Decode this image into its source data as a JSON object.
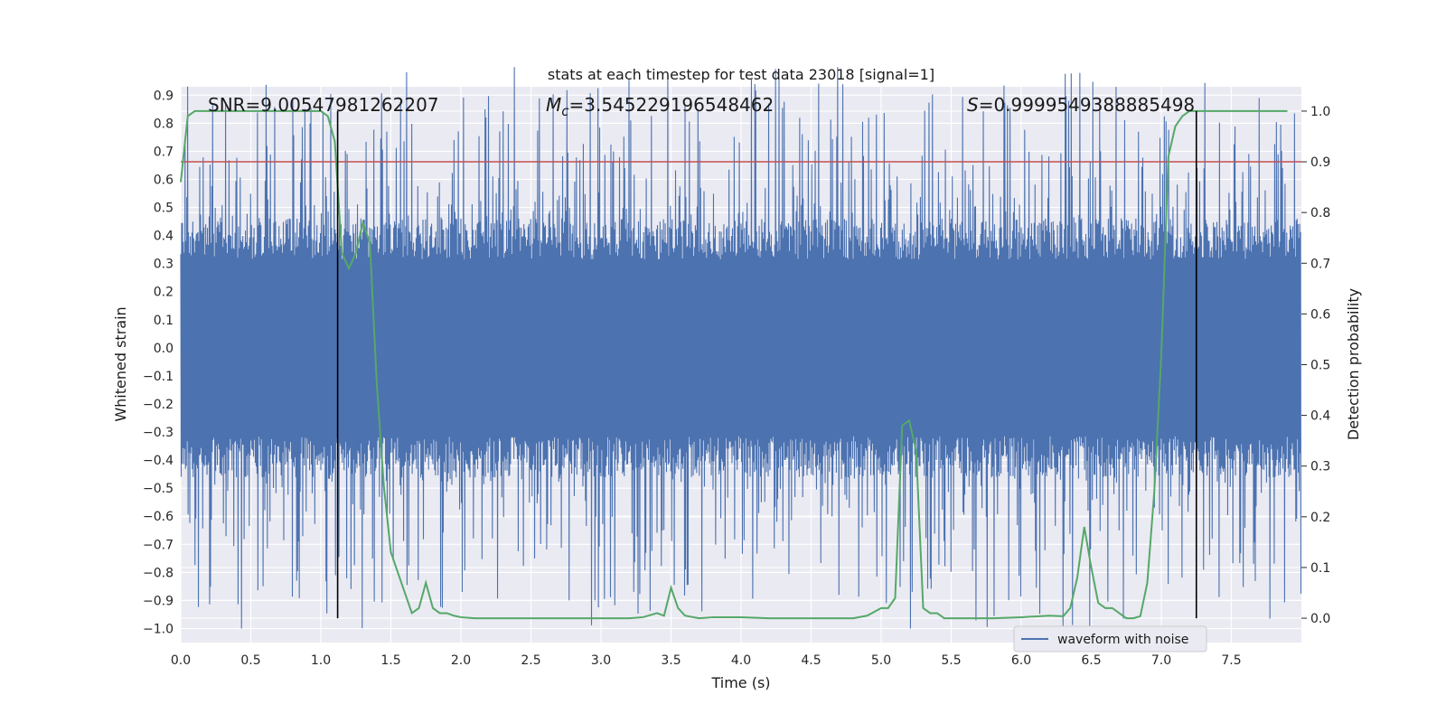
{
  "chart_data": {
    "type": "line",
    "title": "stats at each timestep for test data 23018 [signal=1]",
    "xlabel": "Time (s)",
    "ylabel_left": "Whitened strain",
    "ylabel_right": "Detection probability",
    "xlim": [
      0.0,
      8.0
    ],
    "ylim_left": [
      -1.05,
      0.93
    ],
    "ylim_right": [
      -0.048,
      1.048
    ],
    "x_ticks": [
      "0.0",
      "0.5",
      "1.0",
      "1.5",
      "2.0",
      "2.5",
      "3.0",
      "3.5",
      "4.0",
      "4.5",
      "5.0",
      "5.5",
      "6.0",
      "6.5",
      "7.0",
      "7.5"
    ],
    "x_tick_values": [
      0,
      0.5,
      1,
      1.5,
      2,
      2.5,
      3,
      3.5,
      4,
      4.5,
      5,
      5.5,
      6,
      6.5,
      7,
      7.5
    ],
    "y_left_ticks": [
      "0.9",
      "0.8",
      "0.7",
      "0.6",
      "0.5",
      "0.4",
      "0.3",
      "0.2",
      "0.1",
      "0.0",
      "−0.1",
      "−0.2",
      "−0.3",
      "−0.4",
      "−0.5",
      "−0.6",
      "−0.7",
      "−0.8",
      "−0.9",
      "−1.0"
    ],
    "y_left_tick_values": [
      0.9,
      0.8,
      0.7,
      0.6,
      0.5,
      0.4,
      0.3,
      0.2,
      0.1,
      0,
      -0.1,
      -0.2,
      -0.3,
      -0.4,
      -0.5,
      -0.6,
      -0.7,
      -0.8,
      -0.9,
      -1.0
    ],
    "y_right_ticks": [
      "1.0",
      "0.9",
      "0.8",
      "0.7",
      "0.6",
      "0.5",
      "0.4",
      "0.3",
      "0.2",
      "0.1",
      "0.0"
    ],
    "y_right_tick_values": [
      1.0,
      0.9,
      0.8,
      0.7,
      0.6,
      0.5,
      0.4,
      0.3,
      0.2,
      0.1,
      0.0
    ],
    "grid": true,
    "annotations": {
      "snr": "SNR=9.00547981262207",
      "mc_symbol": "M",
      "mc_sub": "c",
      "mc_value": "=3.545229196548462",
      "s_symbol": "S",
      "s_value": "=0.9999549388885498"
    },
    "threshold": {
      "value": 0.9,
      "axis": "right",
      "color": "#c44e52"
    },
    "vertical_lines": [
      1.12,
      7.25
    ],
    "legend": {
      "entries": [
        "waveform with noise"
      ],
      "placement": "lower-right"
    },
    "series": [
      {
        "name": "waveform with noise",
        "axis": "left",
        "color": "#4c72b0",
        "kind": "noise",
        "duration": 8.0,
        "core_amplitude": 0.42,
        "peak_amplitude_max": 1.0
      },
      {
        "axis": "right",
        "color": "#55a868",
        "x": [
          0.0,
          0.05,
          0.1,
          0.15,
          0.5,
          0.8,
          1.0,
          1.05,
          1.1,
          1.15,
          1.2,
          1.25,
          1.3,
          1.35,
          1.4,
          1.45,
          1.5,
          1.55,
          1.6,
          1.65,
          1.7,
          1.75,
          1.8,
          1.85,
          1.9,
          1.95,
          2.0,
          2.1,
          2.3,
          2.5,
          2.7,
          3.0,
          3.2,
          3.3,
          3.4,
          3.45,
          3.5,
          3.55,
          3.6,
          3.7,
          3.8,
          4.0,
          4.2,
          4.4,
          4.8,
          4.9,
          5.0,
          5.05,
          5.1,
          5.15,
          5.2,
          5.25,
          5.3,
          5.35,
          5.4,
          5.45,
          5.5,
          5.6,
          5.8,
          6.0,
          6.2,
          6.3,
          6.35,
          6.4,
          6.45,
          6.5,
          6.55,
          6.6,
          6.65,
          6.7,
          6.75,
          6.8,
          6.85,
          6.9,
          6.95,
          7.0,
          7.05,
          7.1,
          7.15,
          7.2,
          7.25,
          7.3,
          7.35,
          7.4,
          7.45,
          7.5,
          7.55,
          7.6,
          7.9
        ],
        "y": [
          0.86,
          0.99,
          1.0,
          1.0,
          1.0,
          1.0,
          1.0,
          0.99,
          0.94,
          0.72,
          0.69,
          0.72,
          0.78,
          0.74,
          0.46,
          0.26,
          0.13,
          0.09,
          0.05,
          0.01,
          0.02,
          0.07,
          0.02,
          0.01,
          0.01,
          0.005,
          0.002,
          0.0,
          0.0,
          0.0,
          0.0,
          0.0,
          0.0,
          0.002,
          0.01,
          0.005,
          0.06,
          0.02,
          0.005,
          0.0,
          0.002,
          0.002,
          0.0,
          0.0,
          0.0,
          0.005,
          0.02,
          0.02,
          0.04,
          0.38,
          0.39,
          0.33,
          0.02,
          0.01,
          0.01,
          0.0,
          0.0,
          0.0,
          0.0,
          0.002,
          0.005,
          0.004,
          0.02,
          0.08,
          0.18,
          0.1,
          0.03,
          0.02,
          0.02,
          0.01,
          0.0,
          0.0,
          0.004,
          0.07,
          0.25,
          0.52,
          0.91,
          0.97,
          0.99,
          1.0,
          1.0,
          1.0,
          1.0,
          1.0,
          1.0,
          1.0,
          1.0,
          1.0,
          1.0
        ]
      }
    ]
  }
}
